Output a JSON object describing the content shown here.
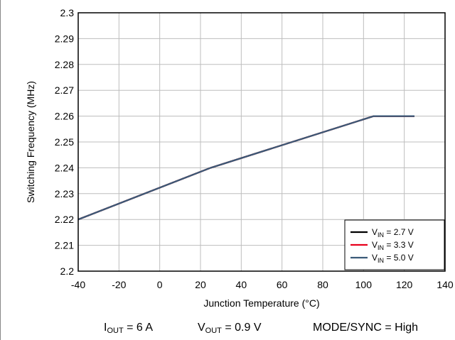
{
  "chart_data": {
    "type": "line",
    "title": "",
    "xlabel": "Junction Temperature (°C)",
    "ylabel": "Switching Frequency (MHz)",
    "xlim": [
      -40,
      140
    ],
    "ylim": [
      2.2,
      2.3
    ],
    "xticks": [
      -40,
      -20,
      0,
      20,
      40,
      60,
      80,
      100,
      120,
      140
    ],
    "yticks": [
      2.2,
      2.21,
      2.22,
      2.23,
      2.24,
      2.25,
      2.26,
      2.27,
      2.28,
      2.29,
      2.3
    ],
    "grid": true,
    "legend_position": "bottom-right",
    "series": [
      {
        "name": "VIN = 2.7 V",
        "label_main": "V",
        "label_sub": "IN",
        "label_rest": " = 2.7 V",
        "color": "#000000",
        "x": [
          -40,
          25,
          105,
          125
        ],
        "y": [
          2.22,
          2.24,
          2.26,
          2.26
        ]
      },
      {
        "name": "VIN = 3.3 V",
        "label_main": "V",
        "label_sub": "IN",
        "label_rest": " = 3.3 V",
        "color": "#e8001c",
        "x": [
          -40,
          25,
          105,
          125
        ],
        "y": [
          2.22,
          2.24,
          2.26,
          2.26
        ]
      },
      {
        "name": "VIN = 5.0 V",
        "label_main": "V",
        "label_sub": "IN",
        "label_rest": " = 5.0 V",
        "color": "#3a5a78",
        "x": [
          -40,
          25,
          105,
          125
        ],
        "y": [
          2.22,
          2.24,
          2.26,
          2.26
        ]
      }
    ]
  },
  "conditions": {
    "iout": {
      "main": "I",
      "sub": "OUT",
      "rest": " = 6 A"
    },
    "vout": {
      "main": "V",
      "sub": "OUT",
      "rest": " = 0.9 V"
    },
    "mode": "MODE/SYNC = High"
  }
}
